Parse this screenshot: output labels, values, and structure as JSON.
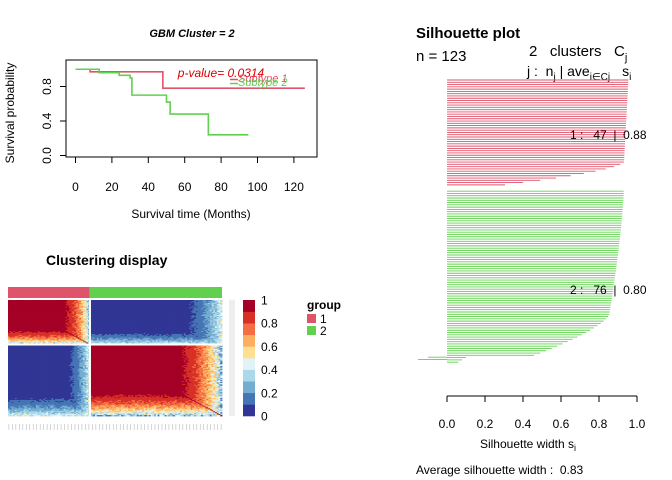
{
  "survival": {
    "title": "GBM Cluster = 2",
    "xlabel": "Survival time (Months)",
    "ylabel": "Survival probability",
    "pvalue_text": "p-value= 0.0314",
    "legend_1": "Subtype 1",
    "legend_2": "Subtype 2",
    "pvalue_color": "#DF0000",
    "colors": {
      "1": "#DF536B",
      "2": "#61D04F"
    }
  },
  "clustering": {
    "title": "Clustering display",
    "legend_title": "group",
    "groups": [
      "1",
      "2"
    ],
    "group_colors": [
      "#DF536B",
      "#61D04F"
    ],
    "group_sizes": [
      47,
      76
    ],
    "colorbar_labels": [
      "1",
      "0.8",
      "0.6",
      "0.4",
      "0.2",
      "0"
    ],
    "colorbar_colors": [
      "#313695",
      "#4575B4",
      "#74ADD1",
      "#ABD9E9",
      "#E0F3F8",
      "#FEE090",
      "#FDAE61",
      "#F46D43",
      "#D73027",
      "#A50026"
    ]
  },
  "silhouette": {
    "title": "Silhouette plot",
    "n_label": "n = 123",
    "clusters_label": "2   clusters   C",
    "clusters_sub": "j",
    "header_j": "j :  n",
    "header_j_sub": "j",
    "header_ave": " | ave",
    "header_ave_sub": "i∈Cj",
    "header_s": "s",
    "header_s_sub": "i",
    "cluster_1_label": "1 :   47  |  0.88",
    "cluster_2_label": "2 :   76  |  0.80",
    "xlabel": "Silhouette width s",
    "xlabel_sub": "i",
    "avg_label": "Average silhouette width :  0.83"
  },
  "chart_data": [
    {
      "type": "line",
      "name": "km-survival",
      "title": "GBM Cluster = 2",
      "xlabel": "Survival time (Months)",
      "ylabel": "Survival probability",
      "xlim": [
        0,
        127
      ],
      "ylim": [
        0,
        1
      ],
      "xticks": [
        0,
        20,
        40,
        60,
        80,
        100,
        120
      ],
      "yticks": [
        0.0,
        0.4,
        0.8
      ],
      "series": [
        {
          "name": "Subtype 1",
          "color": "#DF536B",
          "x": [
            0,
            8,
            44,
            48,
            126
          ],
          "y": [
            1.0,
            0.97,
            0.97,
            0.78,
            0.78
          ]
        },
        {
          "name": "Subtype 2",
          "color": "#61D04F",
          "x": [
            0,
            13,
            24,
            30,
            31,
            50,
            52,
            73,
            95
          ],
          "y": [
            1.0,
            0.96,
            0.93,
            0.9,
            0.7,
            0.62,
            0.48,
            0.24,
            0.24
          ]
        }
      ]
    },
    {
      "type": "heatmap",
      "name": "consensus-matrix",
      "title": "Clustering display",
      "n": 123,
      "group_sizes": [
        47,
        76
      ],
      "value_range": [
        0,
        1
      ],
      "colorbar_ticks": [
        0,
        0.2,
        0.4,
        0.6,
        0.8,
        1
      ]
    },
    {
      "type": "bar",
      "name": "silhouette",
      "title": "Silhouette plot",
      "xlabel": "Silhouette width si",
      "xlim": [
        0,
        1
      ],
      "xticks": [
        0.0,
        0.2,
        0.4,
        0.6,
        0.8,
        1.0
      ],
      "orientation": "horizontal",
      "average": 0.83,
      "clusters": [
        {
          "id": 1,
          "n": 47,
          "avg": 0.88,
          "color": "#DF536B"
        },
        {
          "id": 2,
          "n": 76,
          "avg": 0.8,
          "color": "#61D04F"
        }
      ]
    }
  ]
}
